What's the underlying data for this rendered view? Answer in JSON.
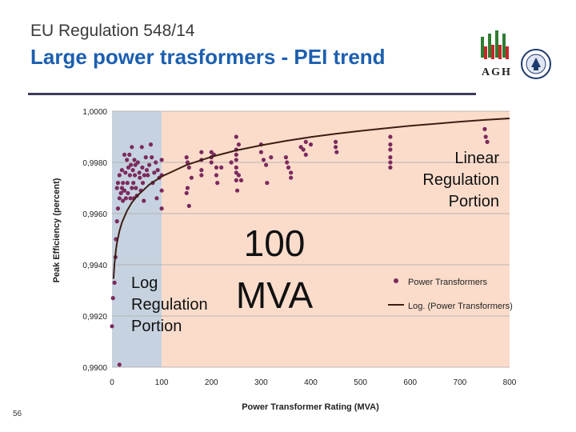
{
  "header": {
    "subtitle": "EU Regulation 548/14",
    "title": "Large power trasformers - PEI trend",
    "logo_text": "AGH"
  },
  "page_number": "56",
  "colors": {
    "title": "#1c5fb0",
    "log_region": "#c6d2df",
    "linear_region": "#fbdccb",
    "points": "#7b2a5e",
    "curve": "#3d1e14"
  },
  "chart_data": {
    "type": "scatter",
    "xlabel": "Power Transformer Rating (MVA)",
    "ylabel": "Peak Efficiency (percent)",
    "xlim": [
      0,
      800
    ],
    "ylim": [
      0.99,
      1.0
    ],
    "x_ticks": [
      0,
      100,
      200,
      300,
      400,
      500,
      600,
      700,
      800
    ],
    "x_tick_labels": [
      "0",
      "100",
      "200",
      "300",
      "400",
      "500",
      "600",
      "700",
      "800"
    ],
    "y_ticks": [
      0.99,
      0.992,
      0.994,
      0.996,
      0.998,
      1.0
    ],
    "y_tick_labels": [
      "0,9900",
      "0,9920",
      "0,9940",
      "0,9960",
      "0,9980",
      "1,0000"
    ],
    "regions": [
      {
        "name": "Log Regulation Portion",
        "x_from": 0,
        "x_to": 100
      },
      {
        "name": "Linear Regulation Portion",
        "x_from": 100,
        "x_to": 800
      }
    ],
    "series": [
      {
        "name": "Power Transformers",
        "kind": "scatter",
        "points": [
          [
            2,
            0.9927
          ],
          [
            5,
            0.9933
          ],
          [
            7,
            0.9943
          ],
          [
            8,
            0.995
          ],
          [
            10,
            0.9957
          ],
          [
            12,
            0.9962
          ],
          [
            15,
            0.9966
          ],
          [
            18,
            0.9968
          ],
          [
            20,
            0.997
          ],
          [
            22,
            0.9965
          ],
          [
            25,
            0.9969
          ],
          [
            10,
            0.997
          ],
          [
            12,
            0.9972
          ],
          [
            15,
            0.9975
          ],
          [
            20,
            0.9977
          ],
          [
            22,
            0.9972
          ],
          [
            24,
            0.9969
          ],
          [
            25,
            0.9983
          ],
          [
            27,
            0.9976
          ],
          [
            28,
            0.9966
          ],
          [
            30,
            0.9981
          ],
          [
            31,
            0.9972
          ],
          [
            32,
            0.9968
          ],
          [
            33,
            0.9978
          ],
          [
            35,
            0.9983
          ],
          [
            36,
            0.9975
          ],
          [
            37,
            0.9966
          ],
          [
            38,
            0.9979
          ],
          [
            40,
            0.9986
          ],
          [
            40,
            0.997
          ],
          [
            42,
            0.9977
          ],
          [
            43,
            0.9972
          ],
          [
            44,
            0.9966
          ],
          [
            45,
            0.9981
          ],
          [
            46,
            0.9975
          ],
          [
            47,
            0.9979
          ],
          [
            48,
            0.997
          ],
          [
            50,
            0.9967
          ],
          [
            52,
            0.998
          ],
          [
            55,
            0.9976
          ],
          [
            56,
            0.9974
          ],
          [
            58,
            0.9969
          ],
          [
            60,
            0.9986
          ],
          [
            61,
            0.9978
          ],
          [
            62,
            0.9972
          ],
          [
            64,
            0.9965
          ],
          [
            65,
            0.9975
          ],
          [
            68,
            0.9982
          ],
          [
            70,
            0.9977
          ],
          [
            72,
            0.9975
          ],
          [
            75,
            0.9979
          ],
          [
            78,
            0.9987
          ],
          [
            80,
            0.9982
          ],
          [
            82,
            0.9972
          ],
          [
            85,
            0.9976
          ],
          [
            88,
            0.998
          ],
          [
            90,
            0.9966
          ],
          [
            92,
            0.9977
          ],
          [
            95,
            0.9974
          ],
          [
            100,
            0.9981
          ],
          [
            100,
            0.9975
          ],
          [
            100,
            0.9969
          ],
          [
            100,
            0.9962
          ],
          [
            150,
            0.9982
          ],
          [
            152,
            0.998
          ],
          [
            152,
            0.997
          ],
          [
            155,
            0.9978
          ],
          [
            160,
            0.9974
          ],
          [
            150,
            0.9968
          ],
          [
            155,
            0.9963
          ],
          [
            180,
            0.9984
          ],
          [
            180,
            0.9981
          ],
          [
            180,
            0.9977
          ],
          [
            180,
            0.9975
          ],
          [
            200,
            0.9984
          ],
          [
            200,
            0.9982
          ],
          [
            200,
            0.998
          ],
          [
            205,
            0.9983
          ],
          [
            210,
            0.9978
          ],
          [
            210,
            0.9975
          ],
          [
            212,
            0.9972
          ],
          [
            220,
            0.9978
          ],
          [
            240,
            0.998
          ],
          [
            250,
            0.9985
          ],
          [
            250,
            0.9983
          ],
          [
            250,
            0.9981
          ],
          [
            250,
            0.9978
          ],
          [
            250,
            0.9976
          ],
          [
            250,
            0.9973
          ],
          [
            252,
            0.9969
          ],
          [
            255,
            0.9987
          ],
          [
            255,
            0.9975
          ],
          [
            260,
            0.9973
          ],
          [
            250,
            0.999
          ],
          [
            300,
            0.9987
          ],
          [
            300,
            0.9984
          ],
          [
            305,
            0.9981
          ],
          [
            310,
            0.9979
          ],
          [
            312,
            0.9972
          ],
          [
            320,
            0.9982
          ],
          [
            350,
            0.9982
          ],
          [
            352,
            0.998
          ],
          [
            355,
            0.9978
          ],
          [
            360,
            0.9976
          ],
          [
            360,
            0.9974
          ],
          [
            380,
            0.9986
          ],
          [
            385,
            0.9985
          ],
          [
            390,
            0.9988
          ],
          [
            390,
            0.9983
          ],
          [
            400,
            0.9987
          ],
          [
            450,
            0.9988
          ],
          [
            450,
            0.9986
          ],
          [
            452,
            0.9984
          ],
          [
            560,
            0.999
          ],
          [
            560,
            0.9987
          ],
          [
            560,
            0.9985
          ],
          [
            560,
            0.9982
          ],
          [
            560,
            0.998
          ],
          [
            560,
            0.9978
          ],
          [
            750,
            0.9993
          ],
          [
            752,
            0.999
          ],
          [
            755,
            0.9988
          ],
          [
            15,
            0.9901
          ],
          [
            0,
            0.9916
          ]
        ]
      },
      {
        "name": "Log. (Power Transformers)",
        "kind": "trendline",
        "points": [
          [
            3,
            0.99345
          ],
          [
            5,
            0.99404
          ],
          [
            8,
            0.9946
          ],
          [
            10,
            0.99486
          ],
          [
            15,
            0.99532
          ],
          [
            20,
            0.99565
          ],
          [
            30,
            0.9961
          ],
          [
            40,
            0.99643
          ],
          [
            50,
            0.99668
          ],
          [
            75,
            0.99713
          ],
          [
            100,
            0.99745
          ],
          [
            150,
            0.9979
          ],
          [
            200,
            0.99822
          ],
          [
            250,
            0.99847
          ],
          [
            300,
            0.99867
          ],
          [
            350,
            0.99884
          ],
          [
            400,
            0.99899
          ],
          [
            450,
            0.99912
          ],
          [
            500,
            0.99923
          ],
          [
            550,
            0.99933
          ],
          [
            600,
            0.99943
          ],
          [
            650,
            0.99951
          ],
          [
            700,
            0.99959
          ],
          [
            750,
            0.99966
          ],
          [
            800,
            0.99972
          ]
        ]
      }
    ],
    "legend": {
      "placement": "right",
      "entries": [
        "Power Transformers",
        "Log. (Power Transformers)"
      ]
    },
    "annotations": {
      "log_label": [
        "Log",
        "Regulation",
        "Portion"
      ],
      "linear_label": [
        "Linear",
        "Regulation",
        "Portion"
      ],
      "threshold_label": [
        "100",
        "MVA"
      ]
    }
  }
}
